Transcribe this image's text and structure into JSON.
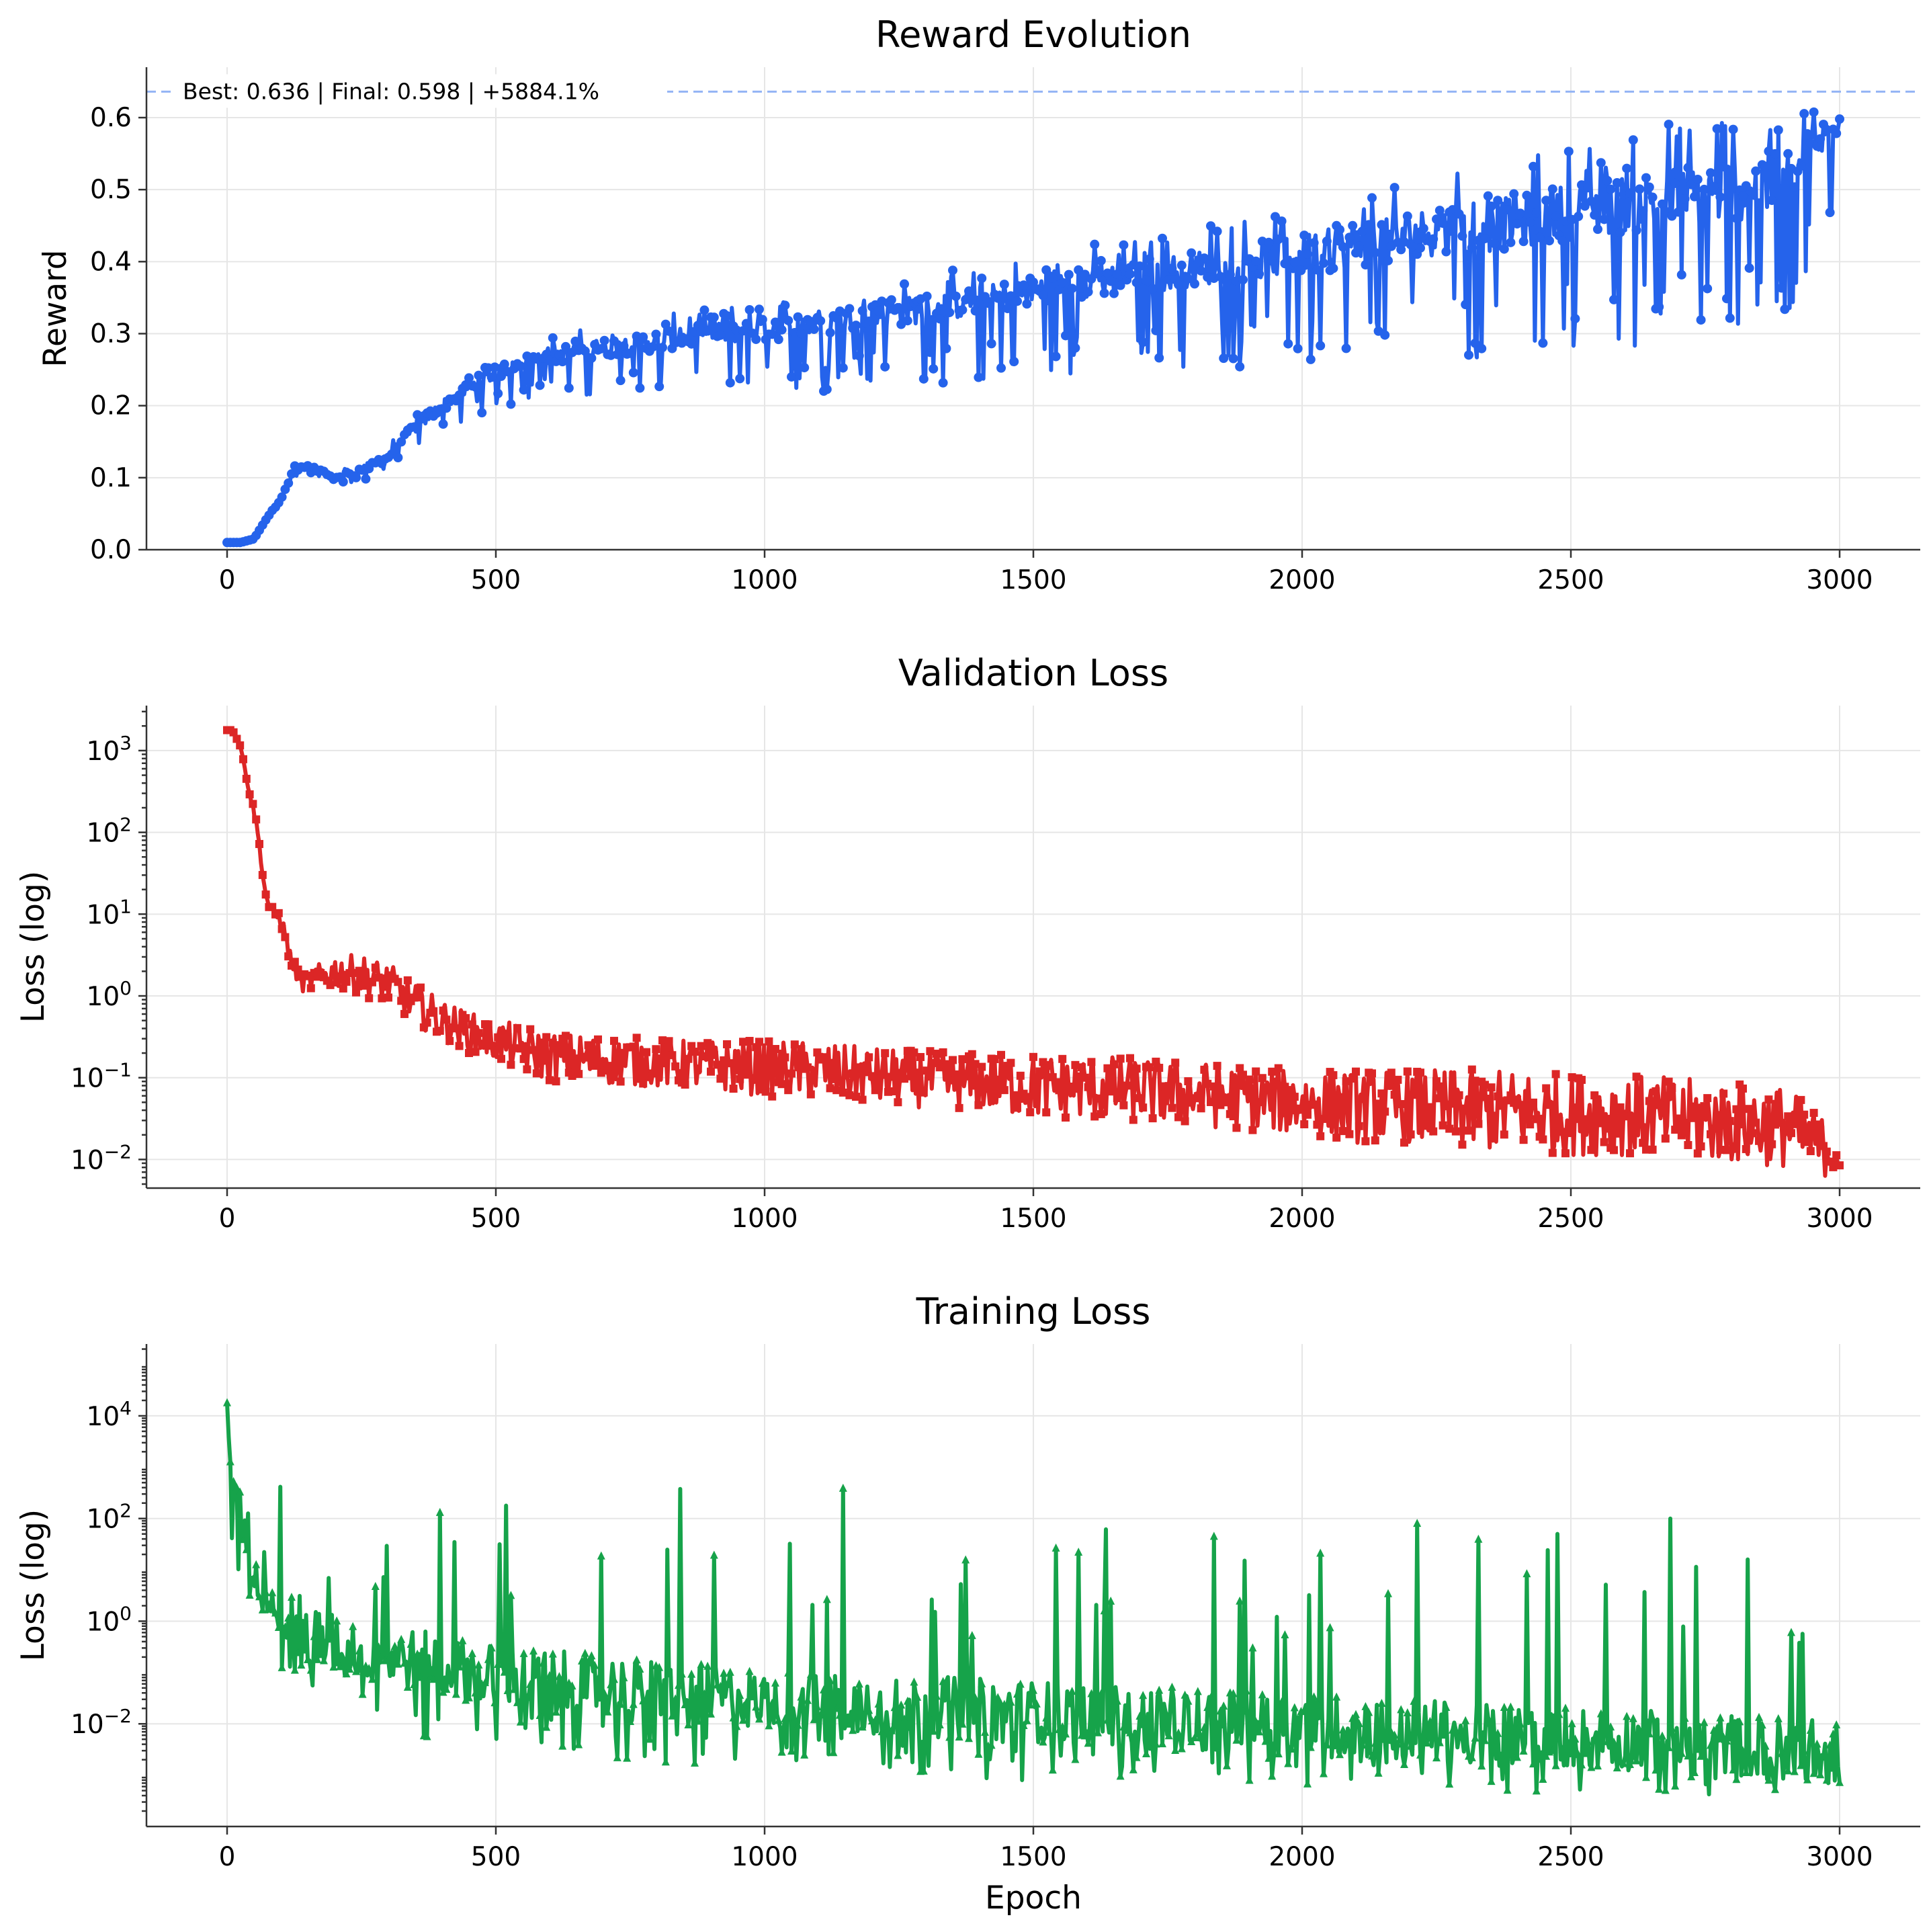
{
  "chart_data": [
    {
      "type": "line",
      "title": "Reward Evolution",
      "xlabel": "",
      "ylabel": "Reward",
      "xlim": [
        -150,
        3150
      ],
      "ylim": [
        0,
        0.67
      ],
      "xticks": [
        0,
        500,
        1000,
        1500,
        2000,
        2500,
        3000
      ],
      "yticks": [
        0.0,
        0.1,
        0.2,
        0.3,
        0.4,
        0.5,
        0.6
      ],
      "ytick_labels": [
        "0.0",
        "0.1",
        "0.2",
        "0.3",
        "0.4",
        "0.5",
        "0.6"
      ],
      "yscale": "linear",
      "grid": true,
      "color": "#2563eb",
      "marker": "circle",
      "annotation": {
        "text": "Best: 0.636 | Final: 0.598 | +5884.1%",
        "best_value": 0.636,
        "line_color": "#93b4f5",
        "line_style": "dashed"
      },
      "series": [
        {
          "x": [
            0,
            25,
            50,
            75,
            100,
            125,
            150,
            200,
            250,
            300,
            350,
            400,
            450,
            500,
            550,
            600,
            700,
            800,
            900,
            1000,
            1100,
            1200,
            1300,
            1400,
            1500,
            1600,
            1700,
            1800,
            1900,
            2000,
            2100,
            2200,
            2300,
            2400,
            2500,
            2600,
            2700,
            2800,
            2900,
            3000
          ],
          "values": [
            0.01,
            0.01,
            0.015,
            0.045,
            0.07,
            0.11,
            0.115,
            0.1,
            0.11,
            0.13,
            0.17,
            0.2,
            0.225,
            0.245,
            0.26,
            0.27,
            0.28,
            0.29,
            0.3,
            0.305,
            0.315,
            0.325,
            0.335,
            0.345,
            0.36,
            0.37,
            0.38,
            0.39,
            0.4,
            0.41,
            0.425,
            0.435,
            0.445,
            0.455,
            0.47,
            0.48,
            0.49,
            0.5,
            0.51,
            0.598
          ],
          "spread_upper": [
            0,
            0,
            0,
            0,
            0.005,
            0.01,
            0.01,
            0.01,
            0.015,
            0.015,
            0.02,
            0.02,
            0.02,
            0.02,
            0.02,
            0.03,
            0.03,
            0.035,
            0.035,
            0.04,
            0.045,
            0.045,
            0.05,
            0.05,
            0.05,
            0.055,
            0.06,
            0.06,
            0.065,
            0.07,
            0.08,
            0.09,
            0.09,
            0.09,
            0.1,
            0.1,
            0.11,
            0.11,
            0.12,
            0.04
          ],
          "spread_lower": [
            0,
            0,
            0,
            0,
            0.005,
            0.01,
            0.01,
            0.01,
            0.015,
            0.02,
            0.03,
            0.04,
            0.04,
            0.05,
            0.06,
            0.06,
            0.07,
            0.07,
            0.08,
            0.09,
            0.1,
            0.1,
            0.11,
            0.12,
            0.12,
            0.13,
            0.14,
            0.14,
            0.15,
            0.16,
            0.17,
            0.18,
            0.19,
            0.2,
            0.2,
            0.2,
            0.2,
            0.2,
            0.2,
            0.13
          ]
        }
      ]
    },
    {
      "type": "line",
      "title": "Validation Loss",
      "xlabel": "",
      "ylabel": "Loss (log)",
      "xlim": [
        -150,
        3150
      ],
      "ylim_log10": [
        -2.35,
        3.55
      ],
      "xticks": [
        0,
        500,
        1000,
        1500,
        2000,
        2500,
        3000
      ],
      "ytick_exponents": [
        -2,
        -1,
        0,
        1,
        2,
        3
      ],
      "ytick_labels": [
        "10",
        "10",
        "10",
        "10",
        "10",
        "10"
      ],
      "yscale": "log",
      "grid": true,
      "color": "#dc2626",
      "marker": "square",
      "series": [
        {
          "x": [
            0,
            10,
            25,
            40,
            55,
            70,
            80,
            100,
            120,
            140,
            160,
            200,
            250,
            300,
            350,
            400,
            450,
            500,
            550,
            600,
            700,
            800,
            900,
            1000,
            1100,
            1200,
            1300,
            1400,
            1500,
            1600,
            1700,
            1800,
            1900,
            2000,
            2100,
            2200,
            2300,
            2400,
            2500,
            2600,
            2700,
            2800,
            2900,
            3000
          ],
          "log10_values": [
            3.25,
            3.25,
            3.05,
            2.55,
            2.1,
            1.3,
            1.05,
            0.95,
            0.4,
            0.15,
            0.2,
            0.3,
            0.25,
            0.15,
            -0.1,
            -0.3,
            -0.45,
            -0.55,
            -0.65,
            -0.75,
            -0.78,
            -0.82,
            -0.85,
            -0.88,
            -0.92,
            -0.98,
            -1.02,
            -1.05,
            -1.1,
            -1.12,
            -1.15,
            -1.2,
            -1.25,
            -1.3,
            -1.35,
            -1.35,
            -1.4,
            -1.4,
            -1.45,
            -1.45,
            -1.5,
            -1.55,
            -1.6,
            -1.95
          ],
          "spread_log10": [
            0,
            0,
            0,
            0.05,
            0.05,
            0.05,
            0.05,
            0.1,
            0.1,
            0.1,
            0.15,
            0.2,
            0.25,
            0.25,
            0.25,
            0.25,
            0.25,
            0.25,
            0.3,
            0.3,
            0.3,
            0.3,
            0.3,
            0.35,
            0.35,
            0.35,
            0.35,
            0.35,
            0.4,
            0.4,
            0.4,
            0.4,
            0.4,
            0.4,
            0.45,
            0.45,
            0.5,
            0.5,
            0.5,
            0.5,
            0.5,
            0.5,
            0.5,
            0.3
          ]
        }
      ]
    },
    {
      "type": "line",
      "title": "Training Loss",
      "xlabel": "Epoch",
      "ylabel": "Loss (log)",
      "xlim": [
        -150,
        3150
      ],
      "ylim_log10": [
        -4.0,
        5.4
      ],
      "xticks": [
        0,
        500,
        1000,
        1500,
        2000,
        2500,
        3000
      ],
      "ytick_exponents": [
        -2,
        0,
        2,
        4
      ],
      "ytick_labels": [
        "10",
        "10",
        "10",
        "10"
      ],
      "yscale": "log",
      "grid": true,
      "color": "#16a34a",
      "marker": "triangle",
      "series": [
        {
          "x": [
            0,
            10,
            25,
            50,
            75,
            100,
            150,
            200,
            250,
            300,
            400,
            500,
            600,
            700,
            800,
            900,
            1000,
            1100,
            1200,
            1300,
            1400,
            1500,
            1600,
            1700,
            1800,
            1900,
            2000,
            2100,
            2200,
            2300,
            2400,
            2500,
            2600,
            2700,
            2800,
            2900,
            3000
          ],
          "log10_values": [
            3.5,
            2.5,
            1.8,
            1.0,
            0.5,
            0.1,
            -0.5,
            -0.7,
            -0.8,
            -0.9,
            -1.1,
            -1.3,
            -1.4,
            -1.5,
            -1.6,
            -1.7,
            -1.75,
            -1.8,
            -1.85,
            -1.9,
            -1.95,
            -2.0,
            -2.05,
            -2.1,
            -2.15,
            -2.2,
            -2.25,
            -2.3,
            -2.35,
            -2.4,
            -2.45,
            -2.5,
            -2.55,
            -2.6,
            -2.65,
            -2.7,
            -2.8
          ],
          "peak_log10": [
            4.9,
            4.5,
            4.0,
            3.5,
            3.2,
            3.0,
            2.5,
            2.3,
            2.1,
            2.0,
            3.0,
            2.8,
            2.5,
            2.4,
            2.3,
            3.5,
            2.6,
            3.0,
            2.4,
            2.3,
            2.0,
            2.2,
            2.1,
            2.0,
            1.6,
            1.9,
            1.7,
            2.5,
            2.3,
            2.2,
            1.6,
            1.9,
            2.5,
            2.0,
            1.4,
            1.2,
            1.8
          ],
          "trough_log10": [
            1.5,
            1.5,
            0.8,
            0.0,
            -0.5,
            -1.0,
            -1.5,
            -1.8,
            -2.0,
            -2.2,
            -2.4,
            -2.5,
            -2.6,
            -2.7,
            -2.8,
            -2.9,
            -2.9,
            -3.0,
            -3.0,
            -3.0,
            -3.1,
            -3.1,
            -3.1,
            -3.15,
            -3.2,
            -3.2,
            -3.2,
            -3.25,
            -3.3,
            -3.3,
            -3.35,
            -3.4,
            -3.4,
            -3.5,
            -3.55,
            -3.6,
            -3.5
          ]
        }
      ]
    }
  ]
}
